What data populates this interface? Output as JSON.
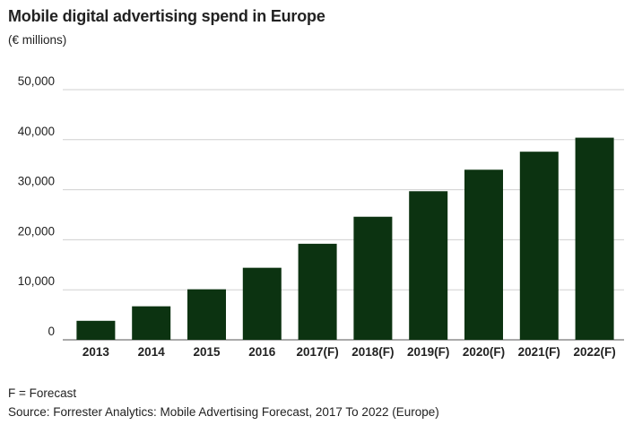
{
  "chart_data": {
    "type": "bar",
    "title": "Mobile digital advertising spend in Europe",
    "subtitle": "(€ millions)",
    "categories": [
      "2013",
      "2014",
      "2015",
      "2016",
      "2017(F)",
      "2018(F)",
      "2019(F)",
      "2020(F)",
      "2021(F)",
      "2022(F)"
    ],
    "values": [
      3800,
      6700,
      10100,
      14400,
      19200,
      24600,
      29700,
      34000,
      37600,
      40400
    ],
    "ylim": [
      0,
      50000
    ],
    "yticks": [
      "0",
      "10,000",
      "20,000",
      "30,000",
      "40,000",
      "50,000"
    ],
    "ytick_values": [
      0,
      10000,
      20000,
      30000,
      40000,
      50000
    ],
    "grid": true,
    "colors": {
      "bar": "#0c3311",
      "grid": "#d0d0d0",
      "axis": "#555555"
    }
  },
  "notes": {
    "forecast": "F = Forecast",
    "source": "Source: Forrester Analytics: Mobile Advertising Forecast, 2017 To 2022 (Europe)"
  }
}
